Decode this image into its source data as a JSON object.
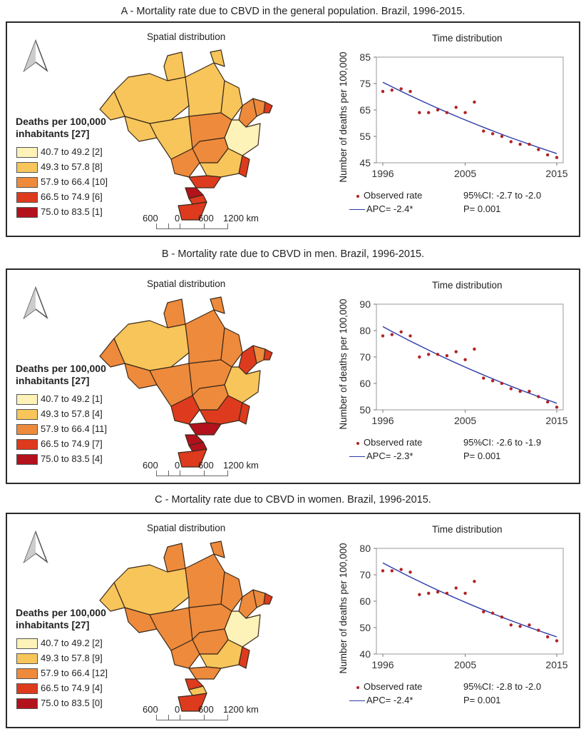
{
  "spatial_label": "Spatial distribution",
  "time_label": "Time distribution",
  "legend_title_line1": "Deaths per 100,000",
  "legend_title_line2": "inhabitants [27]",
  "scale_labels": [
    "600",
    "0",
    "600",
    "1200 km"
  ],
  "colors": {
    "class1": "#fdf2b8",
    "class2": "#f7c55a",
    "class3": "#ee8a3c",
    "class4": "#dd3a1e",
    "class5": "#b3121d",
    "fit_line": "#2b3aa8",
    "observed": "#b22222"
  },
  "chart_data": [
    {
      "type": "scatter",
      "title": "A - Mortality rate due to CBVD in the general population. Brazil, 1996-2015.",
      "ylabel": "Number of deaths per 100,000",
      "x": [
        1996,
        1997,
        1998,
        1999,
        2000,
        2001,
        2002,
        2003,
        2004,
        2005,
        2006,
        2007,
        2008,
        2009,
        2010,
        2011,
        2012,
        2013,
        2014,
        2015
      ],
      "y": [
        72,
        72.5,
        73,
        72,
        64,
        64,
        65,
        64,
        66,
        64,
        68,
        57,
        56,
        55,
        53,
        52,
        52,
        50,
        48,
        47
      ],
      "fit": {
        "y_start": 75.5,
        "y_end": 48.5
      },
      "ylim": [
        45,
        85
      ],
      "yticks": [
        45,
        55,
        65,
        75,
        85
      ],
      "xticks": [
        1996,
        2005,
        2015
      ],
      "legend_observed": "Observed rate",
      "legend_apc": "APC= -2.4*",
      "ci": "95%CI: -2.7 to -2.0",
      "p": "P= 0.001",
      "legend": [
        {
          "label": "40.7 to 49.2 [2]"
        },
        {
          "label": "49.3 to 57.8 [8]"
        },
        {
          "label": "57.9 to 66.4 [10]"
        },
        {
          "label": "66.5 to 74.9 [6]"
        },
        {
          "label": "75.0 to 83.5 [1]"
        }
      ]
    },
    {
      "type": "scatter",
      "title": "B - Mortality rate due to CBVD in men. Brazil, 1996-2015.",
      "ylabel": "Number of deaths per 100,000",
      "x": [
        1996,
        1997,
        1998,
        1999,
        2000,
        2001,
        2002,
        2003,
        2004,
        2005,
        2006,
        2007,
        2008,
        2009,
        2010,
        2011,
        2012,
        2013,
        2014,
        2015
      ],
      "y": [
        78,
        78.5,
        79.5,
        78,
        70,
        71,
        71,
        70.5,
        72,
        69,
        73,
        62,
        61,
        60,
        58,
        57,
        57,
        55,
        53,
        51
      ],
      "fit": {
        "y_start": 81.5,
        "y_end": 52.5
      },
      "ylim": [
        50,
        90
      ],
      "yticks": [
        50,
        60,
        70,
        80,
        90
      ],
      "xticks": [
        1996,
        2005,
        2015
      ],
      "legend_observed": "Observed rate",
      "legend_apc": "APC= -2.3*",
      "ci": "95%CI: -2.6 to -1.9",
      "p": "P= 0.001",
      "legend": [
        {
          "label": "40.7 to 49.2 [1]"
        },
        {
          "label": "49.3 to 57.8 [4]"
        },
        {
          "label": "57.9 to 66.4 [11]"
        },
        {
          "label": "66.5 to 74.9 [7]"
        },
        {
          "label": "75.0 to 83.5 [4]"
        }
      ]
    },
    {
      "type": "scatter",
      "title": "C - Mortality rate due to CBVD in women. Brazil, 1996-2015.",
      "ylabel": "Number of deaths per 100,000",
      "x": [
        1996,
        1997,
        1998,
        1999,
        2000,
        2001,
        2002,
        2003,
        2004,
        2005,
        2006,
        2007,
        2008,
        2009,
        2010,
        2011,
        2012,
        2013,
        2014,
        2015
      ],
      "y": [
        71.5,
        71.5,
        72,
        71,
        62.5,
        63,
        63.5,
        63,
        65,
        63,
        67.5,
        56,
        55.5,
        54,
        51,
        50.5,
        51,
        49,
        46.5,
        45
      ],
      "fit": {
        "y_start": 74.5,
        "y_end": 46.5
      },
      "ylim": [
        40,
        80
      ],
      "yticks": [
        40,
        50,
        60,
        70,
        80
      ],
      "xticks": [
        1996,
        2005,
        2015
      ],
      "legend_observed": "Observed rate",
      "legend_apc": "APC= -2.4*",
      "ci": "95%CI: -2.8 to -2.0",
      "p": "P= 0.001",
      "legend": [
        {
          "label": "40.7 to 49.2 [2]"
        },
        {
          "label": "49.3 to 57.8 [9]"
        },
        {
          "label": "57.9 to 66.4 [12]"
        },
        {
          "label": "66.5 to 74.9 [4]"
        },
        {
          "label": "75.0 to 83.5 [0]"
        }
      ]
    }
  ]
}
